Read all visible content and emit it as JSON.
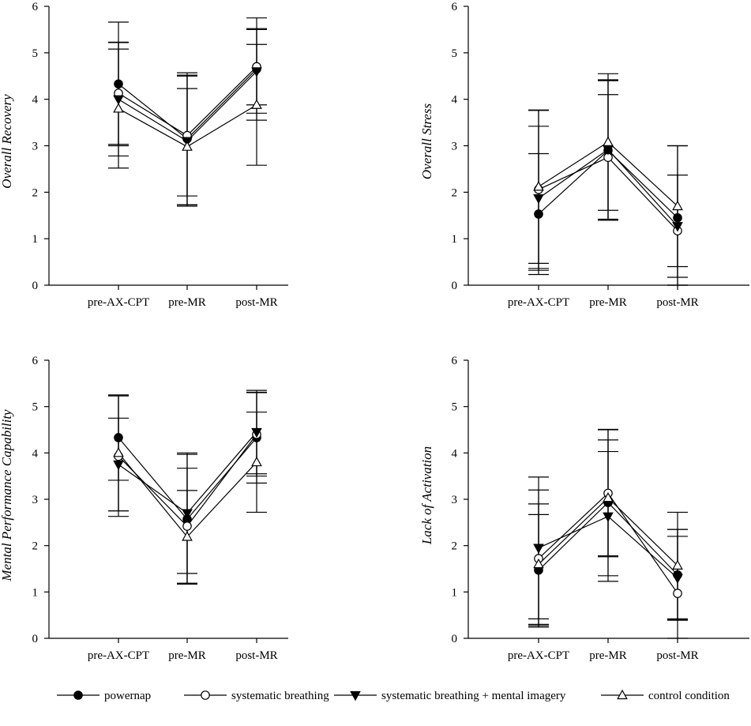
{
  "x_categories": [
    "pre-AX-CPT",
    "pre-MR",
    "post-MR"
  ],
  "series": [
    {
      "name": "powernap",
      "marker": "filled-circle"
    },
    {
      "name": "systematic breathing",
      "marker": "open-circle"
    },
    {
      "name": "systematic breathing + mental imagery",
      "marker": "filled-down-triangle"
    },
    {
      "name": "control condition",
      "marker": "open-up-triangle"
    }
  ],
  "chart_data": [
    {
      "type": "line",
      "ylabel": "Overall Recovery",
      "categories": [
        "pre-AX-CPT",
        "pre-MR",
        "post-MR"
      ],
      "ylim": [
        0,
        6
      ],
      "yticks": [
        "0",
        "1",
        "2",
        "3",
        "4",
        "5",
        "6"
      ],
      "series": [
        {
          "name": "powernap",
          "values": [
            4.33,
            3.15,
            4.65
          ],
          "errors": [
            1.33,
            1.42,
            1.1
          ]
        },
        {
          "name": "systematic breathing",
          "values": [
            4.13,
            3.22,
            4.7
          ],
          "errors": [
            1.1,
            1.3,
            0.82
          ]
        },
        {
          "name": "systematic breathing + mental imagery",
          "values": [
            4.0,
            3.1,
            4.6
          ],
          "errors": [
            1.22,
            1.4,
            0.9
          ]
        },
        {
          "name": "control condition",
          "values": [
            3.8,
            2.98,
            3.88
          ],
          "errors": [
            1.28,
            1.25,
            1.3
          ]
        }
      ]
    },
    {
      "type": "line",
      "ylabel": "Overall Stress",
      "categories": [
        "pre-AX-CPT",
        "pre-MR",
        "post-MR"
      ],
      "ylim": [
        0,
        6
      ],
      "yticks": [
        "0",
        "1",
        "2",
        "3",
        "4",
        "5",
        "6"
      ],
      "series": [
        {
          "name": "powernap",
          "values": [
            1.53,
            2.9,
            1.45
          ],
          "errors": [
            1.3,
            1.5,
            1.55
          ]
        },
        {
          "name": "systematic breathing",
          "values": [
            2.06,
            2.75,
            1.17
          ],
          "errors": [
            1.7,
            1.35,
            1.2
          ]
        },
        {
          "name": "systematic breathing + mental imagery",
          "values": [
            1.87,
            2.92,
            1.27
          ],
          "errors": [
            1.55,
            1.5,
            1.1
          ]
        },
        {
          "name": "control condition",
          "values": [
            2.12,
            3.08,
            1.7
          ],
          "errors": [
            1.65,
            1.47,
            1.3
          ]
        }
      ]
    },
    {
      "type": "line",
      "ylabel": "Mental Performance Capability",
      "categories": [
        "pre-AX-CPT",
        "pre-MR",
        "post-MR"
      ],
      "ylim": [
        0,
        6
      ],
      "yticks": [
        "0",
        "1",
        "2",
        "3",
        "4",
        "5",
        "6"
      ],
      "series": [
        {
          "name": "powernap",
          "values": [
            4.33,
            2.57,
            4.33
          ],
          "errors": [
            0.92,
            1.4,
            0.98
          ]
        },
        {
          "name": "systematic breathing",
          "values": [
            3.93,
            2.42,
            4.4
          ],
          "errors": [
            1.3,
            1.25,
            0.9
          ]
        },
        {
          "name": "systematic breathing + mental imagery",
          "values": [
            3.75,
            2.7,
            4.45
          ],
          "errors": [
            1.0,
            1.3,
            0.9
          ]
        },
        {
          "name": "control condition",
          "values": [
            4.0,
            2.19,
            3.8
          ],
          "errors": [
            1.25,
            1.0,
            1.08
          ]
        }
      ]
    },
    {
      "type": "line",
      "ylabel": "Lack of Activation",
      "categories": [
        "pre-AX-CPT",
        "pre-MR",
        "post-MR"
      ],
      "ylim": [
        0,
        6
      ],
      "yticks": [
        "0",
        "1",
        "2",
        "3",
        "4",
        "5",
        "6"
      ],
      "series": [
        {
          "name": "powernap",
          "values": [
            1.47,
            2.93,
            1.37
          ],
          "errors": [
            1.2,
            1.58,
            0.98
          ]
        },
        {
          "name": "systematic breathing",
          "values": [
            1.72,
            3.13,
            0.97
          ],
          "errors": [
            1.48,
            1.37,
            1.38
          ]
        },
        {
          "name": "systematic breathing + mental imagery",
          "values": [
            1.95,
            2.63,
            1.3
          ],
          "errors": [
            1.53,
            1.4,
            0.9
          ]
        },
        {
          "name": "control condition",
          "values": [
            1.6,
            3.03,
            1.57
          ],
          "errors": [
            1.3,
            1.25,
            1.15
          ]
        }
      ]
    }
  ]
}
